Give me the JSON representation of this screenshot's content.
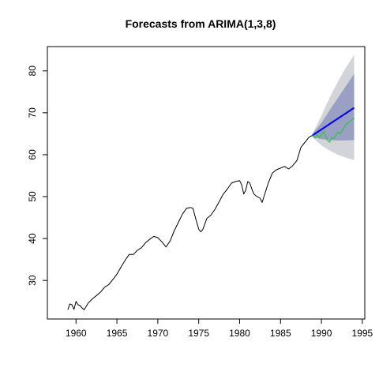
{
  "chart_data": {
    "type": "line",
    "title": "Forecasts from ARIMA(1,3,8)",
    "xlabel": "",
    "ylabel": "",
    "xlim": [
      1956.5,
      1995.3
    ],
    "ylim": [
      20.8,
      85.8
    ],
    "x_ticks": [
      1960,
      1965,
      1970,
      1975,
      1980,
      1985,
      1990,
      1995
    ],
    "y_ticks": [
      30,
      40,
      50,
      60,
      70,
      80
    ],
    "grid": false,
    "legend": "none",
    "colors": {
      "observed": "#000000",
      "forecast": "#0000ff",
      "actual": "#39c24f",
      "band80": "#9aa0c4",
      "band95": "#d3d3da"
    },
    "series": [
      {
        "x": [
          1959.0,
          1959.25,
          1959.5,
          1959.75,
          1960.0,
          1960.25,
          1960.5,
          1960.75,
          1961.0,
          1961.5,
          1962.0,
          1962.5,
          1963.0,
          1963.5,
          1964.0,
          1964.5,
          1965.0,
          1965.5,
          1966.0,
          1966.5,
          1967.0,
          1967.5,
          1968.0,
          1968.5,
          1969.0,
          1969.5,
          1970.0,
          1970.5,
          1971.0,
          1971.5,
          1972.0,
          1972.5,
          1973.0,
          1973.5,
          1974.0,
          1974.3,
          1974.6,
          1975.0,
          1975.25,
          1975.5,
          1976.0,
          1976.5,
          1977.0,
          1977.5,
          1978.0,
          1978.5,
          1979.0,
          1979.5,
          1980.0,
          1980.25,
          1980.5,
          1980.75,
          1981.0,
          1981.25,
          1981.5,
          1981.75,
          1982.0,
          1982.5,
          1982.75,
          1983.0,
          1983.5,
          1984.0,
          1984.5,
          1985.0,
          1985.5,
          1986.0,
          1986.5,
          1987.0,
          1987.5,
          1988.0,
          1988.5,
          1988.9
        ],
        "values": [
          23.0,
          24.4,
          24.2,
          23.1,
          25.0,
          24.2,
          24.0,
          23.4,
          23.0,
          24.6,
          25.6,
          26.4,
          27.2,
          28.4,
          29.0,
          30.2,
          31.5,
          33.2,
          34.8,
          36.2,
          36.2,
          37.2,
          37.8,
          39.0,
          39.8,
          40.5,
          40.2,
          39.2,
          38.0,
          39.4,
          41.8,
          43.8,
          45.8,
          47.2,
          47.4,
          47.2,
          45.0,
          42.2,
          41.6,
          42.2,
          44.8,
          45.6,
          47.0,
          48.8,
          50.6,
          51.8,
          53.2,
          53.6,
          53.8,
          52.8,
          50.6,
          51.6,
          53.6,
          53.2,
          51.8,
          50.6,
          50.2,
          49.6,
          48.6,
          50.2,
          53.2,
          55.6,
          56.4,
          56.8,
          57.2,
          56.6,
          57.4,
          58.6,
          61.8,
          63.0,
          64.2,
          64.6
        ]
      },
      {
        "x": [
          1988.9,
          1994.0
        ],
        "values": [
          64.6,
          71.2
        ]
      },
      {
        "x": [
          1988.9,
          1989.25,
          1989.5,
          1989.75,
          1990.0,
          1990.25,
          1990.5,
          1990.75,
          1991.0,
          1991.25,
          1991.5,
          1991.75,
          1992.0,
          1992.25,
          1992.5,
          1992.75,
          1993.0,
          1993.25,
          1993.5,
          1993.75,
          1994.0
        ],
        "values": [
          64.6,
          64.0,
          64.8,
          64.0,
          64.8,
          65.6,
          64.6,
          63.4,
          63.0,
          64.0,
          63.8,
          64.6,
          65.4,
          65.0,
          65.6,
          66.4,
          67.2,
          67.6,
          68.0,
          68.4,
          68.8
        ]
      }
    ],
    "forecast_interval_80": {
      "x": [
        1988.9,
        1990,
        1991,
        1992,
        1993,
        1994
      ],
      "lower": [
        64.3,
        63.7,
        63.5,
        63.4,
        63.4,
        63.5
      ],
      "upper": [
        64.9,
        67.6,
        70.6,
        73.5,
        76.4,
        79.3
      ]
    },
    "forecast_interval_95": {
      "x": [
        1988.9,
        1990,
        1991,
        1992,
        1993,
        1994
      ],
      "lower": [
        64.2,
        62.2,
        61.0,
        60.0,
        59.3,
        58.7
      ],
      "upper": [
        65.0,
        69.3,
        73.6,
        77.4,
        80.8,
        83.8
      ]
    }
  }
}
